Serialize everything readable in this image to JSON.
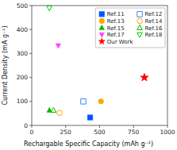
{
  "chart_data": {
    "type": "scatter",
    "xlabel": "Rechargable Specific Capacity (mAh g⁻¹)",
    "ylabel": "Current Density (mA g⁻¹)",
    "xlim": [
      0,
      1000
    ],
    "ylim": [
      0,
      500
    ],
    "xticks": [
      0,
      250,
      500,
      750,
      1000
    ],
    "yticks": [
      0,
      100,
      200,
      300,
      400,
      500
    ],
    "legend": "upper-right",
    "series": [
      {
        "name": "Ref.11",
        "color": "#0055FF",
        "marker": "square",
        "x": [
          430
        ],
        "values": [
          33
        ]
      },
      {
        "name": "Ref.12",
        "color": "#4488FF",
        "marker": "square-open",
        "x": [
          380
        ],
        "values": [
          100
        ]
      },
      {
        "name": "Ref.13",
        "color": "#FFA500",
        "marker": "circle",
        "x": [
          510
        ],
        "values": [
          100
        ]
      },
      {
        "name": "Ref.14",
        "color": "#FFA500",
        "marker": "circle-open",
        "x": [
          205
        ],
        "values": [
          52
        ]
      },
      {
        "name": "Ref.15",
        "color": "#00BB00",
        "marker": "triangle-up",
        "x": [
          130
        ],
        "values": [
          63
        ]
      },
      {
        "name": "Ref.16",
        "color": "#00BB00",
        "marker": "triangle-up-open",
        "x": [
          160
        ],
        "values": [
          63
        ]
      },
      {
        "name": "Ref.17",
        "color": "#FF44FF",
        "marker": "triangle-down",
        "x": [
          195
        ],
        "values": [
          333
        ]
      },
      {
        "name": "Ref.18",
        "color": "#00CC00",
        "marker": "triangle-down-open",
        "x": [
          130
        ],
        "values": [
          490
        ]
      },
      {
        "name": "Our Work",
        "color": "#FF0000",
        "marker": "star",
        "x": [
          830
        ],
        "values": [
          200
        ]
      }
    ]
  }
}
